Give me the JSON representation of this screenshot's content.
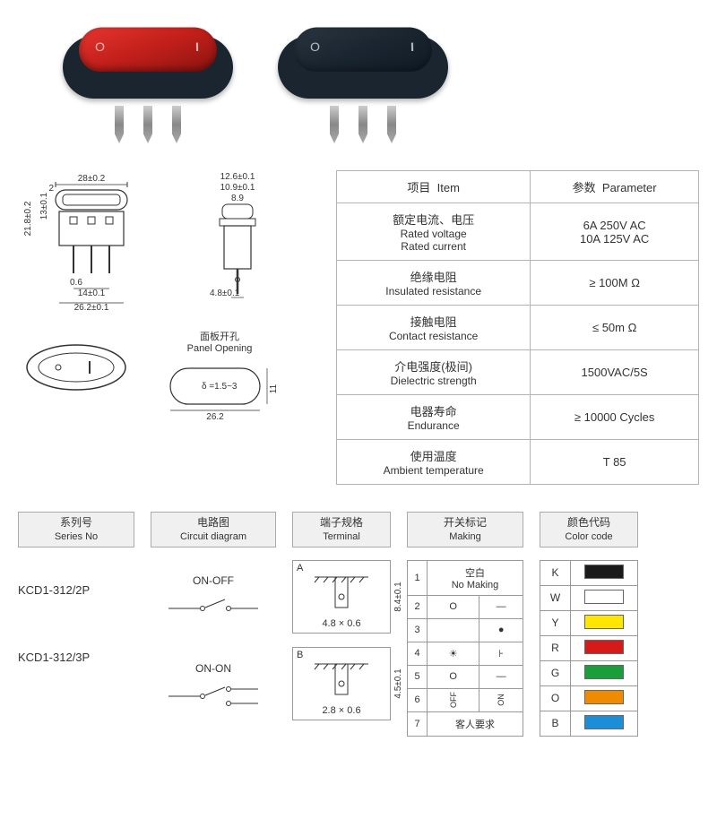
{
  "products": {
    "switch1_rocker_color": "#c8241e",
    "switch2_rocker_color": "#1a2530",
    "body_color": "#1a2530"
  },
  "drawings": {
    "front": {
      "w": "28±0.2",
      "h": "21.8±0.2",
      "rocker_h": "13±0.1",
      "gap": "2",
      "pin_w": "0.6",
      "pin_pitch": "14±0.1",
      "overall_w": "26.2±0.1"
    },
    "side": {
      "top_w": "12.6±0.1",
      "mid_w": "10.9±0.1",
      "inner_w": "8.9",
      "pin_w": "4.8±0.1"
    },
    "panel": {
      "title_cn": "面板开孔",
      "title_en": "Panel Opening",
      "delta": "δ =1.5~3",
      "w": "26.2",
      "h": "11"
    }
  },
  "param_header": {
    "item_cn": "项目",
    "item_en": "Item",
    "param_cn": "参数",
    "param_en": "Parameter"
  },
  "params": [
    {
      "item_cn": "额定电流、电压",
      "item_en": "Rated voltage\nRated current",
      "value": "6A  250V AC\n10A 125V AC"
    },
    {
      "item_cn": "绝缘电阻",
      "item_en": "Insulated resistance",
      "value": "≥ 100M Ω"
    },
    {
      "item_cn": "接触电阻",
      "item_en": "Contact resistance",
      "value": "≤ 50m Ω"
    },
    {
      "item_cn": "介电强度(极间)",
      "item_en": "Dielectric strength",
      "value": "1500VAC/5S"
    },
    {
      "item_cn": "电器寿命",
      "item_en": "Endurance",
      "value": "≥ 10000 Cycles"
    },
    {
      "item_cn": "使用温度",
      "item_en": "Ambient temperature",
      "value": "T 85"
    }
  ],
  "headers": {
    "series_cn": "系列号",
    "series_en": "Series No",
    "circuit_cn": "电路图",
    "circuit_en": "Circuit diagram",
    "terminal_cn": "端子规格",
    "terminal_en": "Terminal",
    "making_cn": "开关标记",
    "making_en": "Making",
    "color_cn": "颜色代码",
    "color_en": "Color code"
  },
  "series": [
    {
      "no": "KCD1-312/2P",
      "circuit": "ON-OFF"
    },
    {
      "no": "KCD1-312/3P",
      "circuit": "ON-ON"
    }
  ],
  "terminals": [
    {
      "label": "A",
      "size": "4.8 × 0.6",
      "side": "8.4±0.1"
    },
    {
      "label": "B",
      "size": "2.8 × 0.6",
      "side": "4.5±0.1"
    }
  ],
  "making": [
    {
      "n": "1",
      "a": "空白\nNo Making",
      "b": ""
    },
    {
      "n": "2",
      "a": "O",
      "b": "—"
    },
    {
      "n": "3",
      "a": "",
      "b": "●"
    },
    {
      "n": "4",
      "a": "☀",
      "b": "⊦"
    },
    {
      "n": "5",
      "a": "O",
      "b": "—"
    },
    {
      "n": "6",
      "a": "OFF",
      "b": "ON",
      "rot": true
    },
    {
      "n": "7",
      "a": "客人要求",
      "b": "",
      "span": true
    }
  ],
  "colors": [
    {
      "code": "K",
      "hex": "#1a1a1a"
    },
    {
      "code": "W",
      "hex": "#ffffff"
    },
    {
      "code": "Y",
      "hex": "#ffe600"
    },
    {
      "code": "R",
      "hex": "#d61a1a"
    },
    {
      "code": "G",
      "hex": "#1a9e3a"
    },
    {
      "code": "O",
      "hex": "#f08a00"
    },
    {
      "code": "B",
      "hex": "#1a8ed6"
    }
  ]
}
